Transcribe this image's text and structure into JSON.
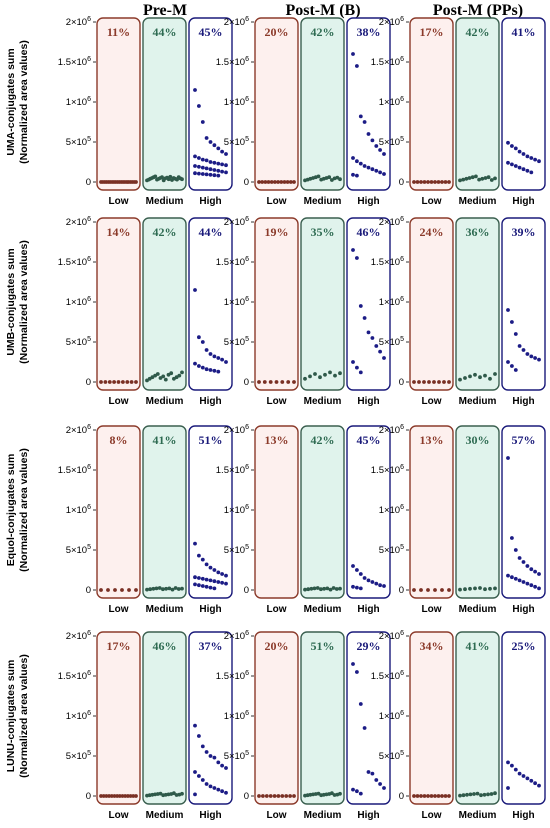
{
  "figure": {
    "columns": [
      "Pre-M",
      "Post-M (B)",
      "Post-M (PPs)"
    ],
    "rows": [
      {
        "line1": "UMA-conjugates sum",
        "line2": "(Normalized area values)"
      },
      {
        "line1": "UMB-conjugates sum",
        "line2": "(Normalized area values)"
      },
      {
        "line1": "Equol-conjugates sum",
        "line2": "(Normalized area values)"
      },
      {
        "line1": "LUNU-conjugates sum",
        "line2": "(Normalized area values)"
      }
    ],
    "y_ticks": [
      {
        "base": "2×10",
        "exp": "6",
        "v": 2000000
      },
      {
        "base": "1.5×10",
        "exp": "6",
        "v": 1500000
      },
      {
        "base": "1×10",
        "exp": "6",
        "v": 1000000
      },
      {
        "base": "5×10",
        "exp": "5",
        "v": 500000
      },
      {
        "base": "0",
        "exp": "",
        "v": 0
      }
    ],
    "categories": [
      "Low",
      "Medium",
      "High"
    ],
    "colors": {
      "low_border": "#8b3a2a",
      "low_fill": "#fdf0ee",
      "low_text": "#8b3a2a",
      "medium_border": "#3a5f4f",
      "medium_fill": "#e0f3ec",
      "medium_text": "#2e6b52",
      "high_border": "#1a1a7a",
      "high_fill": "#ffffff",
      "high_text": "#1a1a7a",
      "dot_low": "#7a3024",
      "dot_medium": "#2f5a4a",
      "dot_high": "#1c1c86"
    }
  },
  "chart_data": [
    {
      "type": "scatter",
      "title": "Pre-M",
      "ylabel": "UMA-conjugates sum (Normalized area values)",
      "ylim": [
        0,
        2000000
      ],
      "categories": [
        "Low",
        "Medium",
        "High"
      ],
      "percentages": [
        "11%",
        "44%",
        "45%"
      ],
      "series": [
        {
          "category": "Low",
          "values": [
            0,
            0,
            0,
            0,
            0,
            0,
            0,
            0,
            0,
            0,
            0,
            0,
            0,
            0,
            0,
            0,
            0,
            0,
            0,
            0
          ]
        },
        {
          "category": "Medium",
          "values": [
            20000,
            30000,
            40000,
            50000,
            60000,
            70000,
            30000,
            40000,
            50000,
            60000,
            20000,
            45000,
            55000,
            35000,
            65000,
            25000,
            50000,
            40000,
            30000,
            60000,
            45000,
            35000
          ]
        },
        {
          "category": "High",
          "values": [
            1150000,
            950000,
            750000,
            550000,
            500000,
            460000,
            420000,
            380000,
            350000,
            320000,
            300000,
            280000,
            270000,
            250000,
            240000,
            230000,
            220000,
            210000,
            200000,
            190000,
            180000,
            170000,
            160000,
            150000,
            140000,
            130000,
            120000,
            110000,
            105000,
            100000,
            95000,
            90000,
            85000,
            80000
          ]
        }
      ]
    },
    {
      "type": "scatter",
      "title": "Post-M (B)",
      "ylabel": "UMA-conjugates sum (Normalized area values)",
      "ylim": [
        0,
        2000000
      ],
      "categories": [
        "Low",
        "Medium",
        "High"
      ],
      "percentages": [
        "20%",
        "42%",
        "38%"
      ],
      "series": [
        {
          "category": "Low",
          "values": [
            0,
            0,
            0,
            0,
            0,
            0,
            0,
            0,
            0,
            0,
            0,
            0
          ]
        },
        {
          "category": "Medium",
          "values": [
            20000,
            30000,
            40000,
            50000,
            60000,
            70000,
            30000,
            40000,
            50000,
            60000,
            25000,
            45000,
            55000,
            35000
          ]
        },
        {
          "category": "High",
          "values": [
            1600000,
            1450000,
            820000,
            750000,
            600000,
            520000,
            450000,
            400000,
            350000,
            300000,
            260000,
            230000,
            200000,
            180000,
            160000,
            140000,
            120000,
            100000,
            90000,
            80000
          ]
        }
      ]
    },
    {
      "type": "scatter",
      "title": "Post-M (PPs)",
      "ylabel": "UMA-conjugates sum (Normalized area values)",
      "ylim": [
        0,
        2000000
      ],
      "categories": [
        "Low",
        "Medium",
        "High"
      ],
      "percentages": [
        "17%",
        "42%",
        "41%"
      ],
      "series": [
        {
          "category": "Low",
          "values": [
            0,
            0,
            0,
            0,
            0,
            0,
            0,
            0,
            0,
            0,
            0
          ]
        },
        {
          "category": "Medium",
          "values": [
            20000,
            30000,
            40000,
            50000,
            60000,
            70000,
            30000,
            40000,
            50000,
            60000,
            25000,
            45000
          ]
        },
        {
          "category": "High",
          "values": [
            490000,
            450000,
            420000,
            380000,
            350000,
            320000,
            300000,
            280000,
            260000,
            240000,
            220000,
            200000,
            180000,
            160000,
            140000,
            120000
          ]
        }
      ]
    },
    {
      "type": "scatter",
      "title": "Pre-M",
      "ylabel": "UMB-conjugates sum (Normalized area values)",
      "ylim": [
        0,
        2000000
      ],
      "categories": [
        "Low",
        "Medium",
        "High"
      ],
      "percentages": [
        "14%",
        "42%",
        "44%"
      ],
      "series": [
        {
          "category": "Low",
          "values": [
            0,
            0,
            0,
            0,
            0,
            0,
            0,
            0,
            0
          ]
        },
        {
          "category": "Medium",
          "values": [
            20000,
            40000,
            60000,
            80000,
            100000,
            50000,
            70000,
            30000,
            90000,
            110000,
            40000,
            60000,
            80000,
            120000
          ]
        },
        {
          "category": "High",
          "values": [
            1150000,
            560000,
            500000,
            400000,
            350000,
            320000,
            300000,
            280000,
            250000,
            230000,
            200000,
            180000,
            160000,
            150000,
            140000,
            130000
          ]
        }
      ]
    },
    {
      "type": "scatter",
      "title": "Post-M (B)",
      "ylabel": "UMB-conjugates sum (Normalized area values)",
      "ylim": [
        0,
        2000000
      ],
      "categories": [
        "Low",
        "Medium",
        "High"
      ],
      "percentages": [
        "19%",
        "35%",
        "46%"
      ],
      "series": [
        {
          "category": "Low",
          "values": [
            0,
            0,
            0,
            0,
            0,
            0,
            0
          ]
        },
        {
          "category": "Medium",
          "values": [
            40000,
            70000,
            100000,
            60000,
            90000,
            120000,
            80000,
            110000
          ]
        },
        {
          "category": "High",
          "values": [
            1650000,
            1550000,
            950000,
            800000,
            620000,
            550000,
            450000,
            380000,
            300000,
            250000,
            180000,
            120000
          ]
        }
      ]
    },
    {
      "type": "scatter",
      "title": "Post-M (PPs)",
      "ylabel": "UMB-conjugates sum (Normalized area values)",
      "ylim": [
        0,
        2000000
      ],
      "categories": [
        "Low",
        "Medium",
        "High"
      ],
      "percentages": [
        "24%",
        "36%",
        "39%"
      ],
      "series": [
        {
          "category": "Low",
          "values": [
            0,
            0,
            0,
            0,
            0,
            0,
            0,
            0
          ]
        },
        {
          "category": "Medium",
          "values": [
            30000,
            50000,
            70000,
            90000,
            60000,
            80000,
            40000,
            100000
          ]
        },
        {
          "category": "High",
          "values": [
            900000,
            750000,
            600000,
            450000,
            400000,
            350000,
            320000,
            300000,
            280000,
            250000,
            200000,
            150000
          ]
        }
      ]
    },
    {
      "type": "scatter",
      "title": "Pre-M",
      "ylabel": "Equol-conjugates sum (Normalized area values)",
      "ylim": [
        0,
        2000000
      ],
      "categories": [
        "Low",
        "Medium",
        "High"
      ],
      "percentages": [
        "8%",
        "41%",
        "51%"
      ],
      "series": [
        {
          "category": "Low",
          "values": [
            0,
            0,
            0,
            0,
            0,
            0
          ]
        },
        {
          "category": "Medium",
          "values": [
            5000,
            10000,
            15000,
            20000,
            25000,
            10000,
            15000,
            20000,
            5000,
            25000,
            12000,
            18000
          ]
        },
        {
          "category": "High",
          "values": [
            580000,
            430000,
            380000,
            320000,
            280000,
            250000,
            220000,
            200000,
            180000,
            160000,
            150000,
            140000,
            130000,
            120000,
            110000,
            100000,
            90000,
            80000,
            70000,
            60000,
            50000,
            40000,
            30000,
            20000
          ]
        }
      ]
    },
    {
      "type": "scatter",
      "title": "Post-M (B)",
      "ylabel": "Equol-conjugates sum (Normalized area values)",
      "ylim": [
        0,
        2000000
      ],
      "categories": [
        "Low",
        "Medium",
        "High"
      ],
      "percentages": [
        "13%",
        "42%",
        "45%"
      ],
      "series": [
        {
          "category": "Low",
          "values": []
        },
        {
          "category": "Medium",
          "values": [
            5000,
            10000,
            15000,
            20000,
            25000,
            10000,
            15000,
            20000,
            5000,
            25000,
            12000,
            18000
          ]
        },
        {
          "category": "High",
          "values": [
            300000,
            250000,
            200000,
            150000,
            120000,
            100000,
            80000,
            60000,
            50000,
            40000,
            30000,
            20000
          ]
        }
      ]
    },
    {
      "type": "scatter",
      "title": "Post-M (PPs)",
      "ylabel": "Equol-conjugates sum (Normalized area values)",
      "ylim": [
        0,
        2000000
      ],
      "categories": [
        "Low",
        "Medium",
        "High"
      ],
      "percentages": [
        "13%",
        "30%",
        "57%"
      ],
      "series": [
        {
          "category": "Low",
          "values": [
            0,
            0,
            0,
            0,
            0,
            0
          ]
        },
        {
          "category": "Medium",
          "values": [
            5000,
            10000,
            15000,
            20000,
            25000,
            10000,
            15000,
            20000
          ]
        },
        {
          "category": "High",
          "values": [
            1650000,
            650000,
            500000,
            400000,
            350000,
            300000,
            260000,
            230000,
            200000,
            180000,
            160000,
            140000,
            120000,
            100000,
            80000,
            60000,
            40000,
            20000
          ]
        }
      ]
    },
    {
      "type": "scatter",
      "title": "Pre-M",
      "ylabel": "LUNU-conjugates sum (Normalized area values)",
      "ylim": [
        0,
        2000000
      ],
      "categories": [
        "Low",
        "Medium",
        "High"
      ],
      "percentages": [
        "17%",
        "46%",
        "37%"
      ],
      "series": [
        {
          "category": "Low",
          "values": [
            0,
            0,
            0,
            0,
            0,
            0,
            0,
            0,
            0,
            0,
            0,
            0,
            0,
            0
          ]
        },
        {
          "category": "Medium",
          "values": [
            5000,
            10000,
            15000,
            20000,
            25000,
            30000,
            10000,
            15000,
            20000,
            25000,
            35000,
            12000,
            18000,
            28000
          ]
        },
        {
          "category": "High",
          "values": [
            880000,
            750000,
            620000,
            550000,
            500000,
            480000,
            420000,
            380000,
            350000,
            300000,
            250000,
            200000,
            150000,
            120000,
            100000,
            80000,
            60000,
            40000,
            20000
          ]
        }
      ]
    },
    {
      "type": "scatter",
      "title": "Post-M (B)",
      "ylabel": "LUNU-conjugates sum (Normalized area values)",
      "ylim": [
        0,
        2000000
      ],
      "categories": [
        "Low",
        "Medium",
        "High"
      ],
      "percentages": [
        "20%",
        "51%",
        "29%"
      ],
      "series": [
        {
          "category": "Low",
          "values": [
            0,
            0,
            0,
            0,
            0,
            0,
            0,
            0,
            0,
            0
          ]
        },
        {
          "category": "Medium",
          "values": [
            5000,
            10000,
            15000,
            20000,
            25000,
            30000,
            10000,
            15000,
            20000,
            25000,
            35000,
            12000,
            18000,
            28000
          ]
        },
        {
          "category": "High",
          "values": [
            1650000,
            1550000,
            1150000,
            850000,
            300000,
            280000,
            200000,
            150000,
            100000,
            80000,
            60000,
            30000
          ]
        }
      ]
    },
    {
      "type": "scatter",
      "title": "Post-M (PPs)",
      "ylabel": "LUNU-conjugates sum (Normalized area values)",
      "ylim": [
        0,
        2000000
      ],
      "categories": [
        "Low",
        "Medium",
        "High"
      ],
      "percentages": [
        "34%",
        "41%",
        "25%"
      ],
      "series": [
        {
          "category": "Low",
          "values": [
            0,
            0,
            0,
            0,
            0,
            0,
            0,
            0,
            0,
            0,
            0
          ]
        },
        {
          "category": "Medium",
          "values": [
            5000,
            10000,
            15000,
            20000,
            25000,
            30000,
            10000,
            15000,
            20000,
            25000,
            35000
          ]
        },
        {
          "category": "High",
          "values": [
            420000,
            380000,
            330000,
            280000,
            250000,
            220000,
            190000,
            160000,
            130000,
            100000
          ]
        }
      ]
    }
  ]
}
